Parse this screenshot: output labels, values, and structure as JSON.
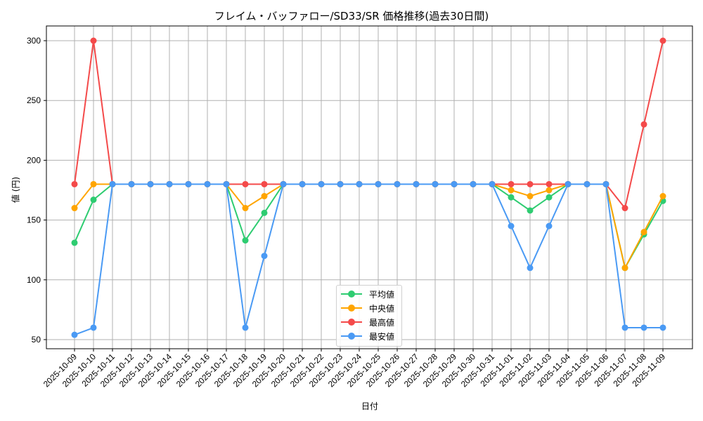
{
  "chart_data": {
    "type": "line",
    "title": "フレイム・バッファロー/SD33/SR 価格推移(過去30日間)",
    "xlabel": "日付",
    "ylabel": "値 (円)",
    "ylim": [
      40,
      312
    ],
    "yticks": [
      50,
      100,
      150,
      200,
      250,
      300
    ],
    "grid": true,
    "legend_position": "lower center",
    "x": [
      "2025-10-09",
      "2025-10-10",
      "2025-10-11",
      "2025-10-12",
      "2025-10-13",
      "2025-10-14",
      "2025-10-15",
      "2025-10-16",
      "2025-10-17",
      "2025-10-18",
      "2025-10-19",
      "2025-10-20",
      "2025-10-21",
      "2025-10-22",
      "2025-10-23",
      "2025-10-24",
      "2025-10-25",
      "2025-10-26",
      "2025-10-27",
      "2025-10-28",
      "2025-10-29",
      "2025-10-30",
      "2025-10-31",
      "2025-11-01",
      "2025-11-02",
      "2025-11-03",
      "2025-11-04",
      "2025-11-05",
      "2025-11-06",
      "2025-11-07",
      "2025-11-08",
      "2025-11-09"
    ],
    "series": [
      {
        "name": "平均値",
        "color": "#2ecc71",
        "values": [
          131,
          167,
          180,
          180,
          180,
          180,
          180,
          180,
          180,
          133,
          156,
          180,
          180,
          180,
          180,
          180,
          180,
          180,
          180,
          180,
          180,
          180,
          180,
          169,
          158,
          169,
          180,
          180,
          180,
          110,
          138,
          166
        ]
      },
      {
        "name": "中央値",
        "color": "#ffa500",
        "values": [
          160,
          180,
          180,
          180,
          180,
          180,
          180,
          180,
          180,
          160,
          170,
          180,
          180,
          180,
          180,
          180,
          180,
          180,
          180,
          180,
          180,
          180,
          180,
          175,
          170,
          175,
          180,
          180,
          180,
          110,
          140,
          170
        ]
      },
      {
        "name": "最高値",
        "color": "#f44a4a",
        "values": [
          180,
          300,
          180,
          180,
          180,
          180,
          180,
          180,
          180,
          180,
          180,
          180,
          180,
          180,
          180,
          180,
          180,
          180,
          180,
          180,
          180,
          180,
          180,
          180,
          180,
          180,
          180,
          180,
          180,
          160,
          230,
          300
        ]
      },
      {
        "name": "最安値",
        "color": "#4a9af4",
        "values": [
          54,
          60,
          180,
          180,
          180,
          180,
          180,
          180,
          180,
          60,
          120,
          180,
          180,
          180,
          180,
          180,
          180,
          180,
          180,
          180,
          180,
          180,
          180,
          145,
          110,
          145,
          180,
          180,
          180,
          60,
          60,
          60
        ]
      }
    ]
  }
}
